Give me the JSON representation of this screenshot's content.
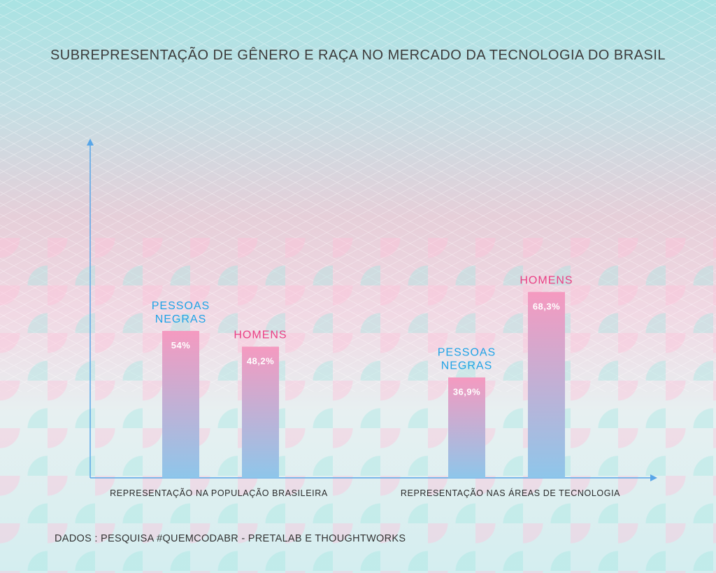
{
  "title": "SUBREPRESENTAÇÃO DE GÊNERO E RAÇA NO MERCADO DA TECNOLOGIA DO BRASIL",
  "source": "DADOS : PESQUISA #QUEMCODABR -  PRETALAB  E THOUGHTWORKS",
  "colors": {
    "blue_label": "#1fa3e6",
    "pink_label": "#ea3f84",
    "axis": "#58a6e8",
    "bar_top": "#f59ac0",
    "bar_bottom": "#8ec6ea"
  },
  "chart_data": {
    "type": "bar",
    "categories": [
      "REPRESENTAÇÃO NA POPULAÇÃO BRASILEIRA",
      "REPRESENTAÇÃO NAS ÁREAS DE TECNOLOGIA"
    ],
    "series": [
      {
        "name": "PESSOAS NEGRAS",
        "values": [
          54,
          36.9
        ],
        "labels": [
          "54%",
          "36,9%"
        ]
      },
      {
        "name": "HOMENS",
        "values": [
          48.2,
          68.3
        ],
        "labels": [
          "48,2%",
          "68,3%"
        ]
      }
    ],
    "ylim": [
      0,
      100
    ],
    "grid": false
  }
}
